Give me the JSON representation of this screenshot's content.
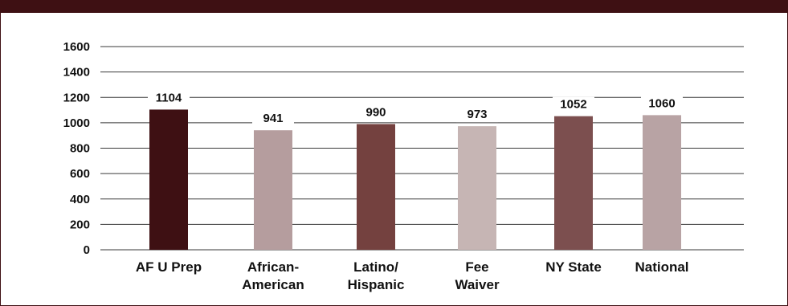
{
  "chart_data": {
    "type": "bar",
    "title": "",
    "xlabel": "",
    "ylabel": "",
    "ylim": [
      0,
      1600
    ],
    "yticks": [
      0,
      200,
      400,
      600,
      800,
      1000,
      1200,
      1400,
      1600
    ],
    "grid": true,
    "legend": "none",
    "categories": [
      [
        "AF U Prep"
      ],
      [
        "African-",
        "American"
      ],
      [
        "Latino/",
        "Hispanic"
      ],
      [
        "Fee",
        "Waiver"
      ],
      [
        "NY State"
      ],
      [
        "National"
      ]
    ],
    "values": [
      1104,
      941,
      990,
      973,
      1052,
      1060
    ],
    "colors": [
      "#3e1013",
      "#b59d9e",
      "#74413f",
      "#c6b5b4",
      "#7c4f4f",
      "#b8a3a4"
    ]
  },
  "colors": {
    "frame": "#3e1013",
    "grid": "#3a3a3a",
    "text": "#111111"
  }
}
